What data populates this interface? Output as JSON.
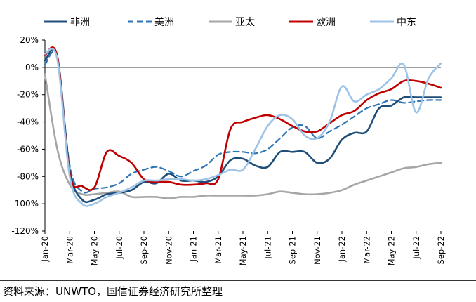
{
  "chart_data": {
    "type": "line",
    "title": "",
    "xlabel": "",
    "ylabel": "",
    "ylim": [
      -120,
      20
    ],
    "yticks": [
      20,
      0,
      -20,
      -40,
      -60,
      -80,
      -100,
      -120
    ],
    "ytick_labels": [
      "20%",
      "0%",
      "-20%",
      "-40%",
      "-60%",
      "-80%",
      "-100%",
      "-120%"
    ],
    "xtick_labels": [
      "Jan-20",
      "Mar-20",
      "May-20",
      "Jul-20",
      "Sep-20",
      "Nov-20",
      "Jan-21",
      "Mar-21",
      "May-21",
      "Jul-21",
      "Sep-21",
      "Nov-21",
      "Jan-22",
      "Mar-22",
      "May-22",
      "Jul-22",
      "Sep-22"
    ],
    "x": [
      0,
      1,
      2,
      3,
      4,
      5,
      6,
      7,
      8,
      9,
      10,
      11,
      12,
      13,
      14,
      15,
      16,
      17,
      18,
      19,
      20,
      21,
      22,
      23,
      24,
      25,
      26,
      27,
      28,
      29,
      30,
      31,
      32
    ],
    "legend_position": "top",
    "series": [
      {
        "name": "非洲",
        "color": "#1f4e79",
        "dash": "solid",
        "width": 2.6,
        "values": [
          5,
          8,
          -75,
          -97,
          -97,
          -93,
          -92,
          -90,
          -84,
          -85,
          -78,
          -83,
          -83,
          -84,
          -80,
          -68,
          -67,
          -72,
          -73,
          -62,
          -62,
          -62,
          -70,
          -67,
          -53,
          -48,
          -47,
          -30,
          -28,
          -22,
          -22,
          -22,
          -22
        ]
      },
      {
        "name": "美洲",
        "color": "#2e75b6",
        "dash": "dashed",
        "width": 2.2,
        "values": [
          2,
          7,
          -72,
          -91,
          -89,
          -88,
          -85,
          -78,
          -75,
          -73,
          -76,
          -80,
          -76,
          -72,
          -64,
          -62,
          -62,
          -63,
          -60,
          -52,
          -44,
          -43,
          -52,
          -47,
          -42,
          -36,
          -30,
          -27,
          -24,
          -26,
          -25,
          -24,
          -24
        ]
      },
      {
        "name": "亚太",
        "color": "#a6a6a6",
        "dash": "solid",
        "width": 2.6,
        "values": [
          -5,
          -60,
          -86,
          -93,
          -93,
          -92,
          -91,
          -95,
          -95,
          -95,
          -96,
          -95,
          -95,
          -94,
          -94,
          -94,
          -94,
          -94,
          -93,
          -91,
          -92,
          -93,
          -93,
          -92,
          -90,
          -86,
          -83,
          -80,
          -77,
          -74,
          -73,
          -71,
          -70
        ]
      },
      {
        "name": "欧洲",
        "color": "#c00000",
        "dash": "solid",
        "width": 2.6,
        "values": [
          9,
          8,
          -78,
          -87,
          -88,
          -62,
          -65,
          -70,
          -82,
          -84,
          -84,
          -86,
          -86,
          -85,
          -82,
          -45,
          -40,
          -37,
          -35,
          -38,
          -43,
          -47,
          -47,
          -41,
          -35,
          -32,
          -24,
          -19,
          -16,
          -10,
          -10,
          -12,
          -15
        ]
      },
      {
        "name": "中东",
        "color": "#9dc3e6",
        "dash": "solid",
        "width": 2.6,
        "values": [
          10,
          6,
          -80,
          -100,
          -100,
          -95,
          -92,
          -88,
          -83,
          -83,
          -82,
          -82,
          -83,
          -82,
          -79,
          -75,
          -75,
          -60,
          -43,
          -35,
          -38,
          -50,
          -52,
          -40,
          -14,
          -25,
          -20,
          -16,
          -8,
          2,
          -33,
          -8,
          3
        ]
      }
    ]
  },
  "source_text": "资料来源：UNWTO，国信证券经济研究所整理"
}
